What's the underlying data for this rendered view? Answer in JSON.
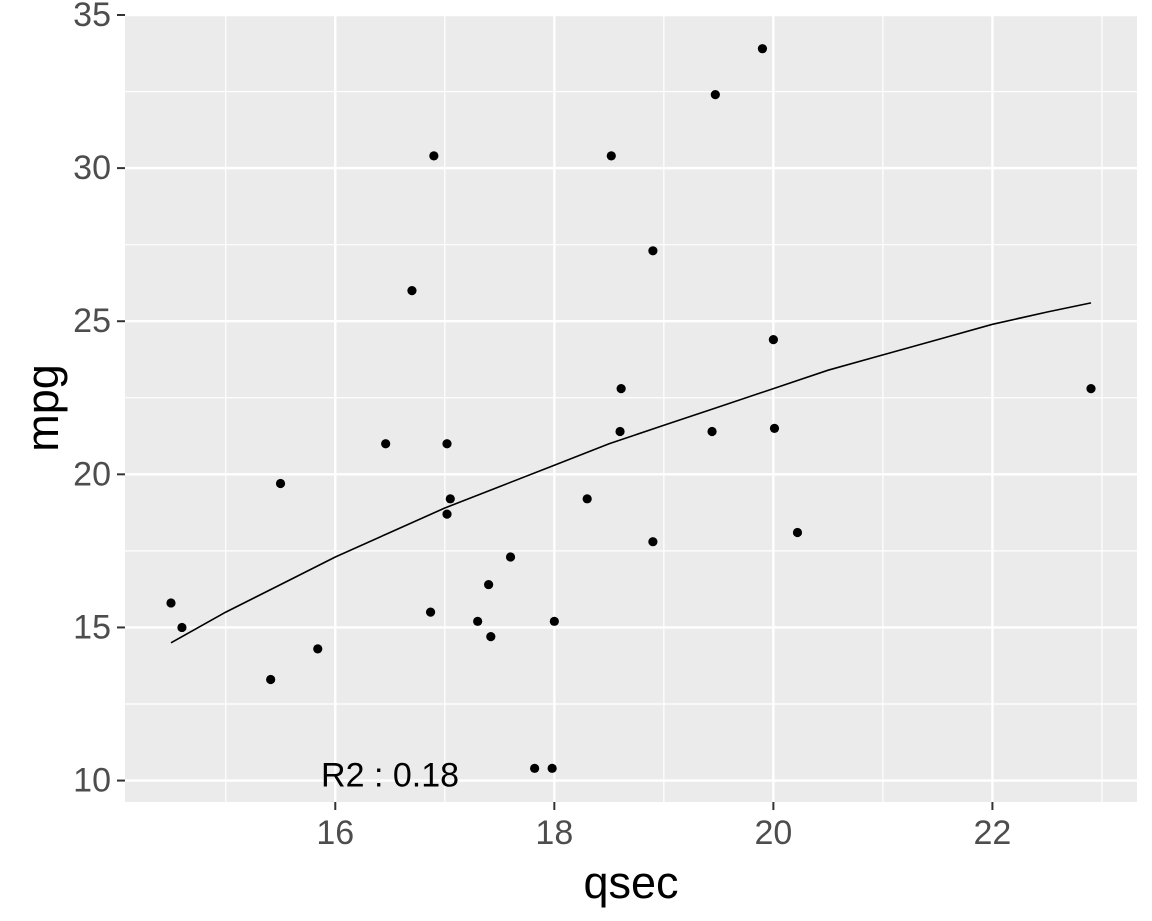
{
  "chart_data": {
    "type": "scatter",
    "xlabel": "qsec",
    "ylabel": "mpg",
    "xlim": [
      14.08,
      23.32
    ],
    "ylim": [
      9.3,
      35.0
    ],
    "x_ticks": [
      16,
      18,
      20,
      22
    ],
    "y_ticks": [
      10,
      15,
      20,
      25,
      30,
      35
    ],
    "grid": true,
    "series": [
      {
        "points": [
          {
            "x": 14.5,
            "y": 15.8
          },
          {
            "x": 14.6,
            "y": 15.0
          },
          {
            "x": 15.41,
            "y": 13.3
          },
          {
            "x": 15.5,
            "y": 19.7
          },
          {
            "x": 15.84,
            "y": 14.3
          },
          {
            "x": 16.46,
            "y": 21.0
          },
          {
            "x": 16.7,
            "y": 26.0
          },
          {
            "x": 16.87,
            "y": 15.5
          },
          {
            "x": 16.9,
            "y": 30.4
          },
          {
            "x": 17.02,
            "y": 21.0
          },
          {
            "x": 17.02,
            "y": 18.7
          },
          {
            "x": 17.05,
            "y": 19.2
          },
          {
            "x": 17.3,
            "y": 15.2
          },
          {
            "x": 17.4,
            "y": 16.4
          },
          {
            "x": 17.42,
            "y": 14.7
          },
          {
            "x": 17.6,
            "y": 17.3
          },
          {
            "x": 17.82,
            "y": 10.4
          },
          {
            "x": 17.98,
            "y": 10.4
          },
          {
            "x": 18.0,
            "y": 15.2
          },
          {
            "x": 18.3,
            "y": 19.2
          },
          {
            "x": 18.52,
            "y": 30.4
          },
          {
            "x": 18.6,
            "y": 21.4
          },
          {
            "x": 18.61,
            "y": 22.8
          },
          {
            "x": 18.9,
            "y": 27.3
          },
          {
            "x": 18.9,
            "y": 17.8
          },
          {
            "x": 19.44,
            "y": 21.4
          },
          {
            "x": 19.47,
            "y": 32.4
          },
          {
            "x": 19.9,
            "y": 33.9
          },
          {
            "x": 20.0,
            "y": 24.4
          },
          {
            "x": 20.01,
            "y": 21.5
          },
          {
            "x": 20.22,
            "y": 18.1
          },
          {
            "x": 22.9,
            "y": 22.8
          }
        ]
      }
    ],
    "fit_line": {
      "x": [
        14.5,
        15.0,
        15.5,
        16.0,
        16.5,
        17.0,
        17.5,
        18.0,
        18.5,
        19.0,
        19.5,
        20.0,
        20.5,
        21.0,
        21.5,
        22.0,
        22.5,
        22.9
      ],
      "y": [
        14.5,
        15.5,
        16.4,
        17.3,
        18.1,
        18.9,
        19.6,
        20.3,
        21.0,
        21.6,
        22.2,
        22.8,
        23.4,
        23.9,
        24.4,
        24.9,
        25.3,
        25.6
      ]
    },
    "annotations": [
      {
        "text": "R2 : 0.18",
        "x": 16.5,
        "y": 10.1
      }
    ]
  }
}
